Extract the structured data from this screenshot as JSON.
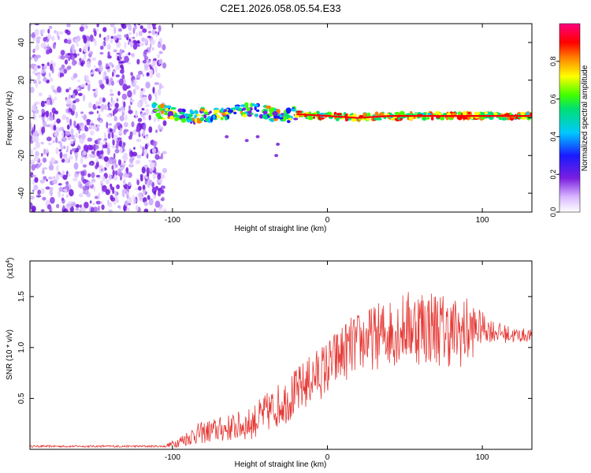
{
  "title": "C2E1.2026.058.05.54.E33",
  "chart_data": [
    {
      "type": "heatmap",
      "xlabel": "Height of straight line (km)",
      "ylabel": "Frequency (Hz)",
      "xlim": [
        -192,
        132
      ],
      "ylim": [
        -50,
        50
      ],
      "xticks": [
        -100,
        0,
        100
      ],
      "yticks": [
        -40,
        -20,
        0,
        20,
        40
      ],
      "noise_region_x": [
        -192,
        -108
      ],
      "signal_track": {
        "x": [
          -112,
          -100,
          -85,
          -70,
          -55,
          -40,
          -30,
          -20,
          0,
          20,
          40,
          60,
          80,
          100,
          120,
          132
        ],
        "freq_hz": [
          4,
          2,
          1,
          2,
          4,
          3,
          1,
          2,
          1,
          0,
          1,
          1,
          1,
          1,
          1,
          1
        ]
      },
      "colorbar": {
        "label": "Normalized spectral amplitude",
        "range": [
          0,
          1
        ],
        "ticks": [
          "0.0",
          "0.2",
          "0.4",
          "0.6",
          "0.8"
        ]
      }
    },
    {
      "type": "line",
      "xlabel": "Height of straight line (km)",
      "ylabel": "SNR (10 * v/v)",
      "multiplier_label": "(x10",
      "multiplier_exp": "4",
      "xlim": [
        -192,
        132
      ],
      "ylim": [
        0,
        1.85
      ],
      "xticks": [
        -100,
        0,
        100
      ],
      "yticks": [
        0.5,
        1.0,
        1.5
      ],
      "ytick_labels": [
        "0.5",
        "1.0",
        "1.5"
      ],
      "series": [
        {
          "name": "SNR",
          "color": "#e53935",
          "envelope_x": [
            -192,
            -105,
            -95,
            -85,
            -75,
            -60,
            -50,
            -40,
            -30,
            -20,
            -10,
            0,
            10,
            20,
            30,
            40,
            50,
            60,
            70,
            80,
            90,
            100,
            110,
            120,
            132
          ],
          "envelope_mean": [
            0.03,
            0.03,
            0.08,
            0.15,
            0.18,
            0.22,
            0.25,
            0.35,
            0.45,
            0.55,
            0.7,
            0.8,
            0.95,
            1.05,
            1.1,
            1.15,
            1.2,
            1.22,
            1.2,
            1.15,
            1.15,
            1.2,
            1.15,
            1.12,
            1.12
          ],
          "envelope_amp": [
            0.01,
            0.01,
            0.06,
            0.1,
            0.12,
            0.14,
            0.16,
            0.2,
            0.22,
            0.25,
            0.25,
            0.28,
            0.3,
            0.3,
            0.32,
            0.35,
            0.35,
            0.4,
            0.38,
            0.35,
            0.35,
            0.15,
            0.1,
            0.08,
            0.06
          ]
        }
      ]
    }
  ]
}
